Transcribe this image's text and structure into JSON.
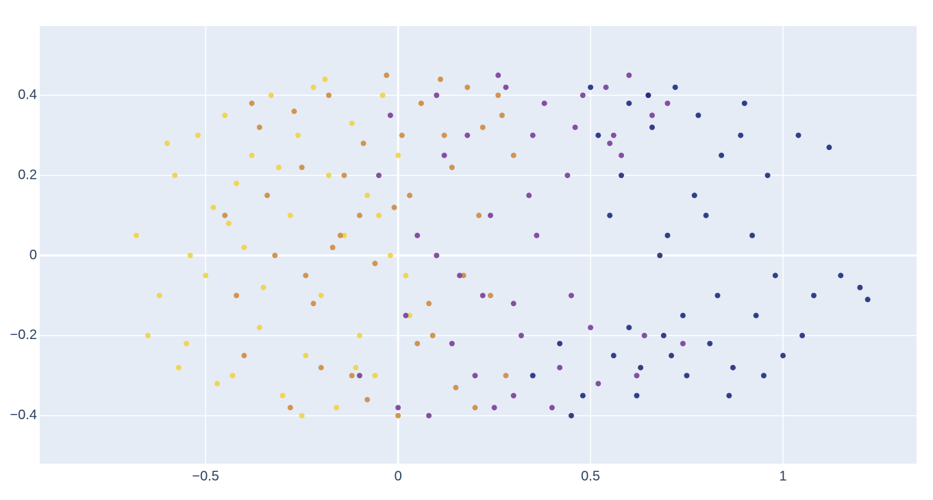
{
  "chart_data": {
    "type": "scatter",
    "grid": true,
    "xlim": [
      -0.931,
      1.347
    ],
    "ylim": [
      -0.52,
      0.573
    ],
    "xticks": [
      {
        "value": -0.5,
        "label": "−0.5"
      },
      0,
      0.5,
      1
    ],
    "yticks": [
      {
        "value": -0.4,
        "label": "−0.4"
      },
      {
        "value": -0.2,
        "label": "−0.2"
      },
      0,
      0.2,
      0.4
    ],
    "series": [
      {
        "color": "#f2d33f",
        "x": [
          -0.68,
          -0.62,
          -0.58,
          -0.55,
          -0.52,
          -0.5,
          -0.48,
          -0.45,
          -0.43,
          -0.4,
          -0.38,
          -0.36,
          -0.33,
          -0.3,
          -0.28,
          -0.26,
          -0.24,
          -0.22,
          -0.2,
          -0.18,
          -0.16,
          -0.14,
          -0.12,
          -0.1,
          -0.08,
          -0.06,
          -0.04,
          -0.02,
          0.0,
          0.03,
          0.06,
          -0.65,
          -0.6,
          -0.54,
          -0.47,
          -0.42,
          -0.35,
          -0.31,
          -0.25,
          -0.19,
          -0.11,
          -0.05,
          0.02,
          -0.57,
          -0.44
        ],
        "values": [
          0.05,
          -0.1,
          0.2,
          -0.22,
          0.3,
          -0.05,
          0.12,
          0.35,
          -0.3,
          0.02,
          0.25,
          -0.18,
          0.4,
          -0.35,
          0.1,
          0.3,
          -0.25,
          0.42,
          -0.1,
          0.2,
          -0.38,
          0.05,
          0.33,
          -0.2,
          0.15,
          -0.3,
          0.4,
          0.0,
          0.25,
          -0.15,
          0.38,
          -0.2,
          0.28,
          0.0,
          -0.32,
          0.18,
          -0.08,
          0.22,
          -0.4,
          0.44,
          -0.28,
          0.1,
          -0.05,
          -0.28,
          0.08
        ]
      },
      {
        "color": "#cf8b3e",
        "x": [
          -0.45,
          -0.4,
          -0.36,
          -0.32,
          -0.28,
          -0.25,
          -0.22,
          -0.18,
          -0.15,
          -0.12,
          -0.09,
          -0.06,
          -0.03,
          0.0,
          0.03,
          0.06,
          0.09,
          0.12,
          0.15,
          0.18,
          0.21,
          0.24,
          0.27,
          0.3,
          -0.42,
          -0.34,
          -0.27,
          -0.2,
          -0.14,
          -0.08,
          -0.01,
          0.05,
          0.11,
          0.17,
          0.22,
          0.28,
          -0.38,
          -0.24,
          -0.1,
          0.01,
          0.08,
          0.14,
          0.2,
          0.26,
          -0.17
        ],
        "values": [
          0.1,
          -0.25,
          0.32,
          0.0,
          -0.38,
          0.22,
          -0.12,
          0.4,
          0.05,
          -0.3,
          0.28,
          -0.02,
          0.45,
          -0.4,
          0.15,
          0.38,
          -0.2,
          0.3,
          -0.33,
          0.42,
          0.1,
          -0.1,
          0.35,
          0.25,
          -0.1,
          0.15,
          0.36,
          -0.28,
          0.2,
          -0.36,
          0.12,
          -0.22,
          0.44,
          -0.05,
          0.32,
          -0.3,
          0.38,
          -0.05,
          0.1,
          0.3,
          -0.12,
          0.22,
          -0.38,
          0.4,
          0.02
        ]
      },
      {
        "color": "#7a3d9a",
        "x": [
          -0.1,
          -0.05,
          0.0,
          0.05,
          0.1,
          0.14,
          0.18,
          0.22,
          0.26,
          0.3,
          0.34,
          0.38,
          0.42,
          0.46,
          0.5,
          0.54,
          0.58,
          0.62,
          0.66,
          0.7,
          0.74,
          0.02,
          0.08,
          0.12,
          0.16,
          0.2,
          0.24,
          0.28,
          0.32,
          0.36,
          0.4,
          0.44,
          0.48,
          0.52,
          0.56,
          0.6,
          0.64,
          -0.02,
          0.1,
          0.25,
          0.35,
          0.45,
          0.55,
          0.65,
          0.3
        ],
        "values": [
          -0.3,
          0.2,
          -0.38,
          0.05,
          0.4,
          -0.22,
          0.3,
          -0.1,
          0.45,
          -0.35,
          0.15,
          0.38,
          -0.28,
          0.32,
          -0.18,
          0.42,
          0.25,
          -0.3,
          0.35,
          0.38,
          -0.22,
          -0.15,
          -0.4,
          0.25,
          -0.05,
          -0.3,
          0.1,
          0.42,
          -0.2,
          0.05,
          -0.38,
          0.2,
          0.4,
          -0.32,
          0.3,
          0.45,
          -0.2,
          0.35,
          0.0,
          -0.38,
          0.3,
          -0.1,
          0.28,
          0.4,
          -0.12
        ]
      },
      {
        "color": "#1e2b7c",
        "x": [
          0.35,
          0.42,
          0.48,
          0.52,
          0.56,
          0.6,
          0.63,
          0.66,
          0.69,
          0.72,
          0.75,
          0.78,
          0.81,
          0.84,
          0.87,
          0.9,
          0.93,
          0.96,
          1.0,
          1.04,
          1.08,
          1.12,
          1.2,
          0.45,
          0.55,
          0.62,
          0.68,
          0.74,
          0.8,
          0.86,
          0.92,
          0.98,
          1.05,
          1.15,
          0.58,
          0.65,
          0.71,
          0.77,
          0.83,
          0.89,
          0.95,
          0.7,
          0.6,
          1.22,
          0.5
        ],
        "values": [
          -0.3,
          -0.22,
          -0.35,
          0.3,
          -0.25,
          0.38,
          -0.28,
          0.32,
          -0.2,
          0.42,
          -0.3,
          0.35,
          -0.22,
          0.25,
          -0.28,
          0.38,
          -0.15,
          0.2,
          -0.25,
          0.3,
          -0.1,
          0.27,
          -0.08,
          -0.4,
          0.1,
          -0.35,
          0.0,
          -0.15,
          0.1,
          -0.35,
          0.05,
          -0.05,
          -0.2,
          -0.05,
          0.2,
          0.4,
          -0.25,
          0.15,
          -0.1,
          0.3,
          -0.3,
          0.05,
          -0.18,
          -0.11,
          0.42
        ]
      }
    ]
  }
}
